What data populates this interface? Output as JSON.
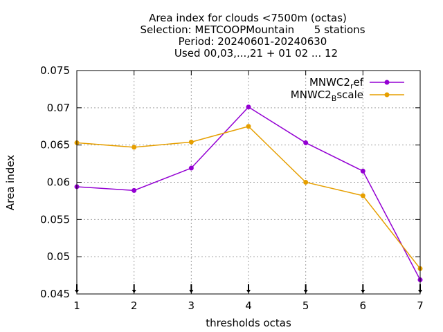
{
  "chart_data": {
    "type": "line",
    "title_lines": [
      "Area index  for clouds <7500m (octas)",
      "Selection: METCOOPMountain      5 stations",
      "Period: 20240601-20240630",
      "Used 00,03,...,21 + 01 02 ... 12"
    ],
    "xlabel": "thresholds octas",
    "ylabel": "Area index",
    "x": [
      1,
      2,
      3,
      4,
      5,
      6,
      7
    ],
    "xlim": [
      1,
      7
    ],
    "ylim": [
      0.045,
      0.075
    ],
    "x_ticks": [
      "1",
      "2",
      "3",
      "4",
      "5",
      "6",
      "7"
    ],
    "y_ticks": [
      "0.045",
      "0.05",
      "0.055",
      "0.06",
      "0.065",
      "0.07",
      "0.075"
    ],
    "grid": true,
    "legend_position": "top-right",
    "series": [
      {
        "name_base": "MNWC2",
        "name_sub": "r",
        "name_rest": "ef",
        "color": "#9400d3",
        "values": [
          0.0594,
          0.0589,
          0.0619,
          0.0701,
          0.0653,
          0.0615,
          0.0469
        ]
      },
      {
        "name_base": "MNWC2",
        "name_sub": "B",
        "name_rest": "scale",
        "color": "#e69f00",
        "values": [
          0.0653,
          0.0647,
          0.0654,
          0.0675,
          0.06,
          0.0582,
          0.0484
        ]
      }
    ]
  }
}
